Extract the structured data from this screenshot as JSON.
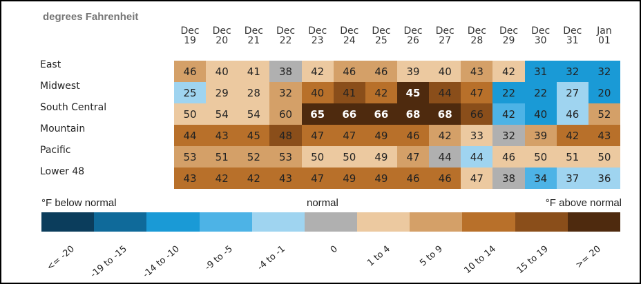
{
  "chart_data": {
    "type": "heatmap",
    "title": "degrees Fahrenheit",
    "x": [
      "Dec 19",
      "Dec 20",
      "Dec 21",
      "Dec 22",
      "Dec 23",
      "Dec 24",
      "Dec 25",
      "Dec 26",
      "Dec 27",
      "Dec 28",
      "Dec 29",
      "Dec 30",
      "Dec 31",
      "Jan 01"
    ],
    "series": [
      {
        "name": "East",
        "values": [
          46,
          40,
          41,
          38,
          42,
          46,
          46,
          39,
          40,
          43,
          42,
          31,
          32,
          32
        ],
        "colors": [
          "#d4a068",
          "#ecc9a0",
          "#ecc9a0",
          "#b0b0b0",
          "#ecc9a0",
          "#d4a068",
          "#d4a068",
          "#ecc9a0",
          "#ecc9a0",
          "#d4a068",
          "#ecc9a0",
          "#1a9ad6",
          "#1a9ad6",
          "#1a9ad6"
        ]
      },
      {
        "name": "Midwest",
        "values": [
          25,
          29,
          28,
          32,
          40,
          41,
          42,
          45,
          44,
          47,
          22,
          22,
          27,
          20
        ],
        "colors": [
          "#9fd4f0",
          "#ecc9a0",
          "#ecc9a0",
          "#d4a068",
          "#b8702a",
          "#8a4e1a",
          "#b8702a",
          "#4e2a0e",
          "#8a4e1a",
          "#b8702a",
          "#1a9ad6",
          "#1a9ad6",
          "#9fd4f0",
          "#1a9ad6"
        ]
      },
      {
        "name": "South Central",
        "values": [
          50,
          54,
          54,
          60,
          65,
          66,
          66,
          68,
          68,
          66,
          42,
          40,
          46,
          52
        ],
        "colors": [
          "#ecc9a0",
          "#ecc9a0",
          "#ecc9a0",
          "#d4a068",
          "#4e2a0e",
          "#4e2a0e",
          "#4e2a0e",
          "#4e2a0e",
          "#4e2a0e",
          "#8a4e1a",
          "#4db3e6",
          "#1a9ad6",
          "#9fd4f0",
          "#d4a068"
        ]
      },
      {
        "name": "Mountain",
        "values": [
          44,
          43,
          45,
          48,
          47,
          47,
          49,
          46,
          42,
          33,
          32,
          39,
          42,
          43
        ],
        "colors": [
          "#b8702a",
          "#b8702a",
          "#b8702a",
          "#8a4e1a",
          "#b8702a",
          "#b8702a",
          "#b8702a",
          "#b8702a",
          "#d4a068",
          "#ecc9a0",
          "#b0b0b0",
          "#d4a068",
          "#b8702a",
          "#b8702a"
        ]
      },
      {
        "name": "Pacific",
        "values": [
          53,
          51,
          52,
          53,
          50,
          50,
          49,
          47,
          44,
          44,
          46,
          50,
          51,
          50
        ],
        "colors": [
          "#d4a068",
          "#d4a068",
          "#d4a068",
          "#d4a068",
          "#ecc9a0",
          "#ecc9a0",
          "#ecc9a0",
          "#d4a068",
          "#b0b0b0",
          "#9fd4f0",
          "#ecc9a0",
          "#ecc9a0",
          "#ecc9a0",
          "#ecc9a0"
        ]
      },
      {
        "name": "Lower 48",
        "values": [
          43,
          42,
          42,
          43,
          47,
          49,
          49,
          46,
          46,
          47,
          38,
          34,
          37,
          36
        ],
        "colors": [
          "#b8702a",
          "#b8702a",
          "#b8702a",
          "#b8702a",
          "#b8702a",
          "#b8702a",
          "#b8702a",
          "#b8702a",
          "#b8702a",
          "#ecc9a0",
          "#b0b0b0",
          "#4db3e6",
          "#9fd4f0",
          "#9fd4f0"
        ]
      }
    ],
    "legend": {
      "below": "°F below normal",
      "normal": "normal",
      "above": "°F above normal",
      "labels": [
        "<= -20",
        "-19 to -15",
        "-14 to -10",
        "-9 to -5",
        "-4 to -1",
        "0",
        "1 to 4",
        "5 to 9",
        "10 to 14",
        "15 to 19",
        ">= 20"
      ],
      "colors": [
        "#0b3d5c",
        "#0f6a9a",
        "#1a9ad6",
        "#4db3e6",
        "#9fd4f0",
        "#b0b0b0",
        "#ecc9a0",
        "#d4a068",
        "#b8702a",
        "#8a4e1a",
        "#4e2a0e"
      ]
    }
  }
}
